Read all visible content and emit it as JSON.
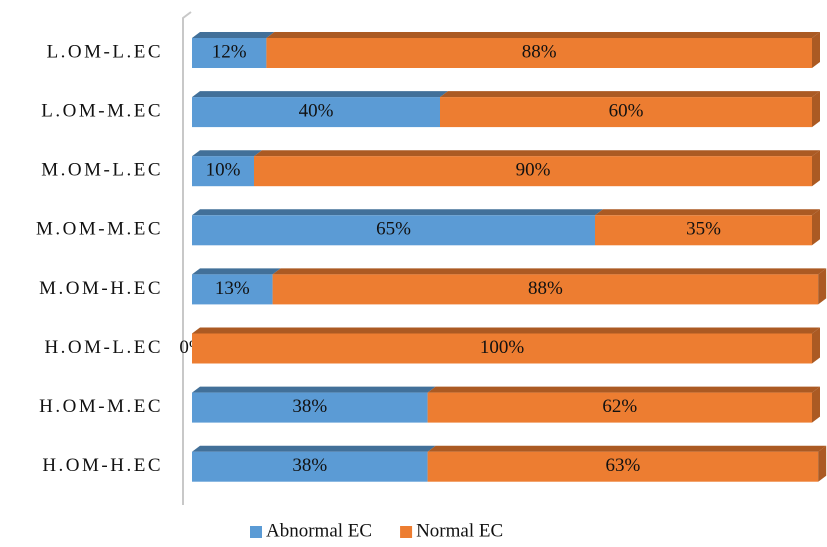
{
  "chart_data": {
    "type": "stacked-bar-horizontal",
    "categories": [
      "L.OM-L.EC",
      "L.OM-M.EC",
      "M.OM-L.EC",
      "M.OM-M.EC",
      "M.OM-H.EC",
      "H.OM-L.EC",
      "H.OM-M.EC",
      "H.OM-H.EC"
    ],
    "series": [
      {
        "name": "Abnormal EC",
        "color": "#5b9bd5",
        "values": [
          12,
          40,
          10,
          65,
          13,
          0,
          38,
          38
        ],
        "value_labels": [
          "12%",
          "40%",
          "10%",
          "65%",
          "13%",
          "0%",
          "38%",
          "38%"
        ]
      },
      {
        "name": "Normal EC",
        "color": "#ed7d31",
        "values": [
          88,
          60,
          90,
          35,
          88,
          100,
          62,
          63
        ],
        "value_labels": [
          "88%",
          "60%",
          "90%",
          "35%",
          "88%",
          "100%",
          "62%",
          "63%"
        ]
      }
    ],
    "xlim": [
      0,
      100
    ],
    "legend": "bottom"
  }
}
